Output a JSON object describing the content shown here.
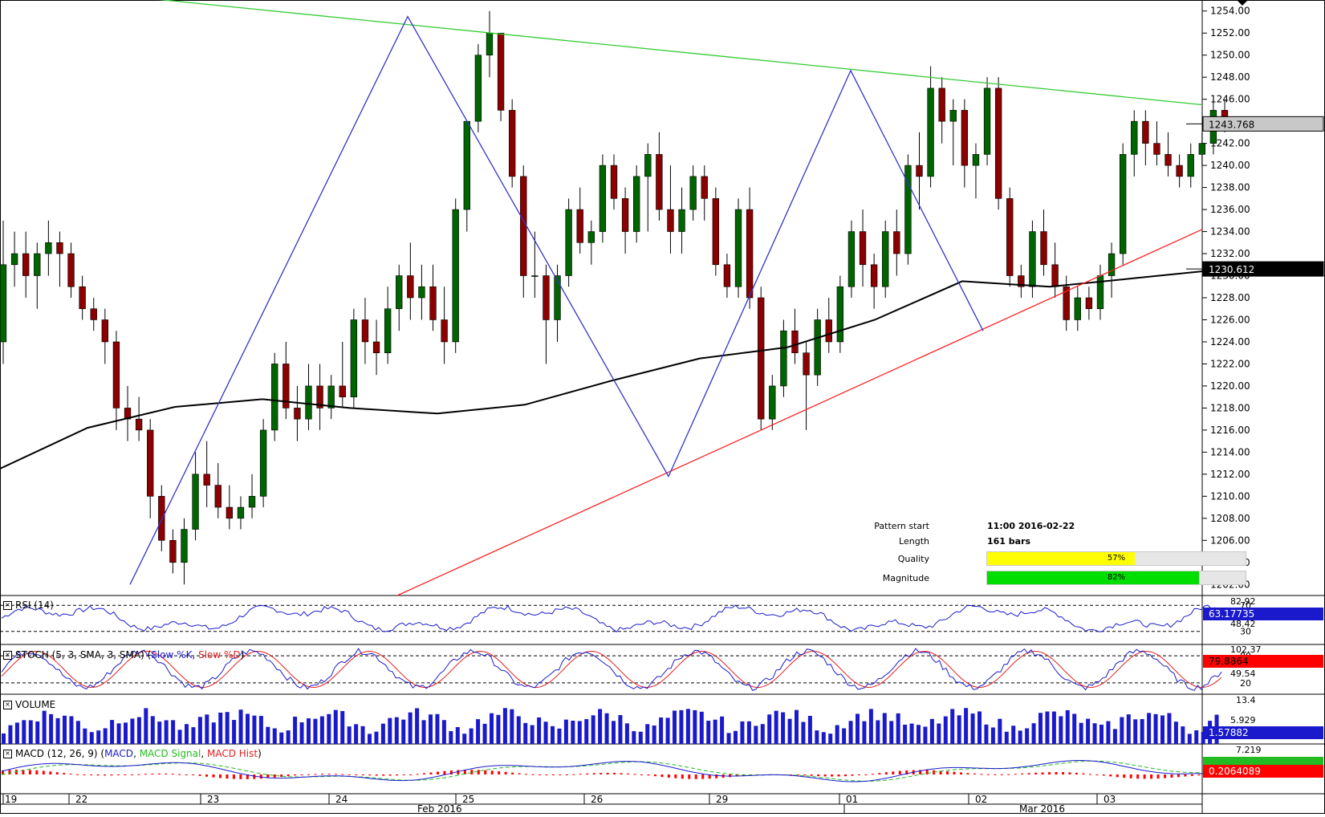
{
  "chart_data": {
    "type": "candlestick",
    "price_axis": {
      "ticks": [
        "1254.00",
        "1252.00",
        "1250.00",
        "1248.00",
        "1246.00",
        "1242.00",
        "1240.00",
        "1238.00",
        "1236.00",
        "1234.00",
        "1232.00",
        "1230.00",
        "1228.00",
        "1226.00",
        "1224.00",
        "1222.00",
        "1220.00",
        "1218.00",
        "1216.00",
        "1214.00",
        "1212.00",
        "1210.00",
        "1208.00",
        "1206.00",
        "1204.00",
        "1202.00"
      ],
      "range": [
        1201,
        1255
      ],
      "current_price": "1243.768",
      "ma_value": "1230.612"
    },
    "time_axis": {
      "day_labels": [
        "19",
        "22",
        "23",
        "24",
        "25",
        "26",
        "29",
        "01",
        "02",
        "03"
      ],
      "month_labels": [
        "Feb 2016",
        "Mar 2016"
      ]
    },
    "candles_ohlc": [
      [
        1224,
        1235,
        1222,
        1231
      ],
      [
        1231,
        1234,
        1229,
        1232
      ],
      [
        1232,
        1234,
        1228,
        1230
      ],
      [
        1230,
        1233,
        1227,
        1232
      ],
      [
        1232,
        1235,
        1230,
        1233
      ],
      [
        1233,
        1234,
        1229,
        1232
      ],
      [
        1232,
        1233,
        1228,
        1229
      ],
      [
        1229,
        1230,
        1226,
        1227
      ],
      [
        1227,
        1228,
        1225,
        1226
      ],
      [
        1226,
        1227,
        1222,
        1224
      ],
      [
        1224,
        1225,
        1216,
        1218
      ],
      [
        1218,
        1220,
        1215,
        1217
      ],
      [
        1217,
        1219,
        1215,
        1216
      ],
      [
        1216,
        1217,
        1208,
        1210
      ],
      [
        1210,
        1211,
        1205,
        1206
      ],
      [
        1206,
        1207,
        1203,
        1204
      ],
      [
        1204,
        1208,
        1202,
        1207
      ],
      [
        1207,
        1214,
        1206,
        1212
      ],
      [
        1212,
        1215,
        1209,
        1211
      ],
      [
        1211,
        1213,
        1208,
        1209
      ],
      [
        1209,
        1211,
        1207,
        1208
      ],
      [
        1208,
        1210,
        1207,
        1209
      ],
      [
        1209,
        1212,
        1208,
        1210
      ],
      [
        1210,
        1217,
        1209,
        1216
      ],
      [
        1216,
        1223,
        1215,
        1222
      ],
      [
        1222,
        1224,
        1217,
        1218
      ],
      [
        1218,
        1220,
        1215,
        1217
      ],
      [
        1217,
        1222,
        1216,
        1220
      ],
      [
        1220,
        1222,
        1216,
        1218
      ],
      [
        1218,
        1221,
        1217,
        1220
      ],
      [
        1220,
        1224,
        1218,
        1219
      ],
      [
        1219,
        1227,
        1218,
        1226
      ],
      [
        1226,
        1228,
        1222,
        1224
      ],
      [
        1224,
        1226,
        1221,
        1223
      ],
      [
        1223,
        1229,
        1222,
        1227
      ],
      [
        1227,
        1231,
        1225,
        1230
      ],
      [
        1230,
        1233,
        1226,
        1228
      ],
      [
        1228,
        1231,
        1226,
        1229
      ],
      [
        1229,
        1231,
        1225,
        1226
      ],
      [
        1226,
        1229,
        1222,
        1224
      ],
      [
        1224,
        1237,
        1223,
        1236
      ],
      [
        1236,
        1241,
        1234,
        1244
      ],
      [
        1244,
        1251,
        1243,
        1250
      ],
      [
        1250,
        1254,
        1248,
        1252
      ],
      [
        1252,
        1251,
        1244,
        1245
      ],
      [
        1245,
        1246,
        1238,
        1239
      ],
      [
        1239,
        1240,
        1228,
        1230
      ],
      [
        1230,
        1234,
        1228,
        1230
      ],
      [
        1230,
        1231,
        1222,
        1226
      ],
      [
        1226,
        1231,
        1224,
        1230
      ],
      [
        1230,
        1237,
        1229,
        1236
      ],
      [
        1236,
        1238,
        1232,
        1233
      ],
      [
        1233,
        1235,
        1231,
        1234
      ],
      [
        1234,
        1241,
        1233,
        1240
      ],
      [
        1240,
        1241,
        1236,
        1237
      ],
      [
        1237,
        1238,
        1232,
        1234
      ],
      [
        1234,
        1240,
        1233,
        1239
      ],
      [
        1239,
        1242,
        1234,
        1241
      ],
      [
        1241,
        1243,
        1235,
        1236
      ],
      [
        1236,
        1240,
        1232,
        1234
      ],
      [
        1234,
        1238,
        1232,
        1236
      ],
      [
        1236,
        1240,
        1235,
        1239
      ],
      [
        1239,
        1240,
        1235,
        1237
      ],
      [
        1237,
        1238,
        1230,
        1231
      ],
      [
        1231,
        1232,
        1228,
        1229
      ],
      [
        1229,
        1237,
        1228,
        1236
      ],
      [
        1236,
        1238,
        1227,
        1228
      ],
      [
        1228,
        1229,
        1216,
        1217
      ],
      [
        1217,
        1221,
        1216,
        1220
      ],
      [
        1220,
        1226,
        1219,
        1225
      ],
      [
        1225,
        1227,
        1222,
        1223
      ],
      [
        1223,
        1224,
        1216,
        1221
      ],
      [
        1221,
        1227,
        1220,
        1226
      ],
      [
        1226,
        1228,
        1223,
        1224
      ],
      [
        1224,
        1230,
        1223,
        1229
      ],
      [
        1229,
        1235,
        1228,
        1234
      ],
      [
        1234,
        1236,
        1229,
        1231
      ],
      [
        1231,
        1232,
        1227,
        1229
      ],
      [
        1229,
        1235,
        1228,
        1234
      ],
      [
        1234,
        1236,
        1230,
        1232
      ],
      [
        1232,
        1241,
        1231,
        1240
      ],
      [
        1240,
        1243,
        1236,
        1239
      ],
      [
        1239,
        1249,
        1238,
        1247
      ],
      [
        1247,
        1248,
        1242,
        1244
      ],
      [
        1244,
        1246,
        1240,
        1245
      ],
      [
        1245,
        1246,
        1238,
        1240
      ],
      [
        1240,
        1242,
        1237,
        1241
      ],
      [
        1241,
        1248,
        1240,
        1247
      ],
      [
        1247,
        1248,
        1236,
        1237
      ],
      [
        1237,
        1238,
        1229,
        1230
      ],
      [
        1230,
        1231,
        1228,
        1229
      ],
      [
        1229,
        1235,
        1228,
        1234
      ],
      [
        1234,
        1236,
        1230,
        1231
      ],
      [
        1231,
        1233,
        1228,
        1229
      ],
      [
        1229,
        1230,
        1225,
        1226
      ],
      [
        1226,
        1229,
        1225,
        1228
      ],
      [
        1228,
        1229,
        1226,
        1227
      ],
      [
        1227,
        1231,
        1226,
        1230
      ],
      [
        1230,
        1233,
        1228,
        1232
      ],
      [
        1232,
        1242,
        1231,
        1241
      ],
      [
        1241,
        1245,
        1239,
        1244
      ],
      [
        1244,
        1245,
        1240,
        1242
      ],
      [
        1242,
        1244,
        1240,
        1241
      ],
      [
        1241,
        1243,
        1239,
        1240
      ],
      [
        1240,
        1241,
        1238,
        1239
      ],
      [
        1239,
        1242,
        1238,
        1241
      ],
      [
        1241,
        1243,
        1240,
        1242
      ],
      [
        1242,
        1246,
        1241,
        1245
      ],
      [
        1245,
        1246,
        1243,
        1243.8
      ]
    ],
    "ma_series": [
      1212.5,
      1216.2,
      1218.1,
      1218.8,
      1218.0,
      1217.5,
      1218.3,
      1220.5,
      1222.5,
      1223.5,
      1226.0,
      1229.5,
      1229.0,
      1229.8,
      1230.6
    ],
    "trendlines": {
      "green_resistance": [
        [
          0,
          1256.5
        ],
        [
          1498,
          1245.5
        ]
      ],
      "red_support": [
        [
          495,
          1201
        ],
        [
          1498,
          1234.2
        ]
      ],
      "zigzag": [
        [
          162,
          1202
        ],
        [
          508,
          1253.5
        ],
        [
          833,
          1211.8
        ],
        [
          1060,
          1248.6
        ],
        [
          1225,
          1225.0
        ]
      ]
    },
    "pattern_info": {
      "start_label": "Pattern start",
      "start_value": "11:00 2016-02-22",
      "length_label": "Length",
      "length_value": "161 bars",
      "quality_label": "Quality",
      "quality_value": "57%",
      "quality_fraction": 0.57,
      "magnitude_label": "Magnitude",
      "magnitude_value": "82%",
      "magnitude_fraction": 0.82
    },
    "indicators": {
      "rsi": {
        "title": "RSI (14)",
        "ticks": [
          "82.92",
          "70",
          "48.42",
          "30"
        ],
        "value": "63.17735",
        "levels": [
          70,
          30
        ],
        "range": [
          10,
          85
        ]
      },
      "stoch": {
        "title_prefix": "STOCH (5, 3, SMA, 3, SMA) (",
        "k_label": "Slow %K",
        "sep": ", ",
        "d_label": "Slow %D",
        "title_suffix": ")",
        "ticks": [
          "102.37",
          "80",
          "49.54",
          "20"
        ],
        "value": "79.8864",
        "levels": [
          80,
          20
        ],
        "range": [
          -5,
          105
        ]
      },
      "volume": {
        "title": "VOLUME",
        "ticks": [
          "13.4",
          "5.929"
        ],
        "value": "1.57882",
        "range": [
          0,
          14
        ]
      },
      "macd": {
        "title_prefix": "MACD (12, 26, 9) (",
        "macd_label": "MACD",
        "sep": ", ",
        "signal_label": "MACD Signal",
        "hist_label": "MACD Hist",
        "title_suffix": ")",
        "ticks": [
          "7.219"
        ],
        "value": "0.2064089"
      }
    },
    "colors": {
      "bull": "#006400",
      "bear": "#8b0000",
      "ma": "#000000",
      "green_line": "#33cc33",
      "red_line": "#ff2020",
      "zigzag": "#3333cc",
      "rsi": "#1a1acc",
      "stoch_k": "#1a1acc",
      "stoch_d": "#e02020",
      "volume": "#1a1acc",
      "macd": "#1a1acc",
      "signal": "#22bb22",
      "hist": "#ff0000",
      "quality": "#ffff00",
      "magnitude": "#00dd00",
      "price_box": "#c8c8c8",
      "value_red": "#ff0000"
    }
  }
}
